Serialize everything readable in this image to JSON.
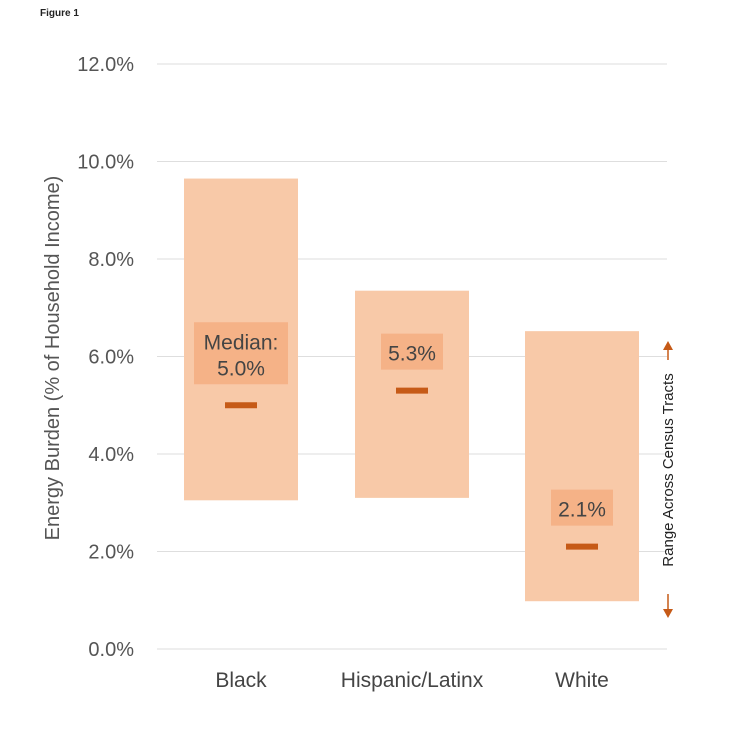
{
  "figure_label": "Figure 1",
  "chart_data": {
    "type": "range-bar",
    "ylabel": "Energy Burden (% of Household Income)",
    "ylim": [
      0,
      12
    ],
    "yticks": [
      0,
      2,
      4,
      6,
      8,
      10,
      12
    ],
    "ytick_labels": [
      "0.0%",
      "2.0%",
      "4.0%",
      "6.0%",
      "8.0%",
      "10.0%",
      "12.0%"
    ],
    "grid": true,
    "categories": [
      "Black",
      "Hispanic/Latinx",
      "White"
    ],
    "range_low": [
      3.05,
      3.1,
      0.98
    ],
    "range_high": [
      9.65,
      7.35,
      6.52
    ],
    "median": [
      5.0,
      5.3,
      2.1
    ],
    "median_labels": [
      [
        "Median:",
        "5.0%"
      ],
      [
        "5.3%"
      ],
      [
        "2.1%"
      ]
    ],
    "range_annotation": "Range Across Census Tracts",
    "colors": {
      "range": "#f8c9a8",
      "label_box": "#f4a97c",
      "median": "#c65a17",
      "grid": "#dedede",
      "arrow": "#c65a17"
    }
  }
}
